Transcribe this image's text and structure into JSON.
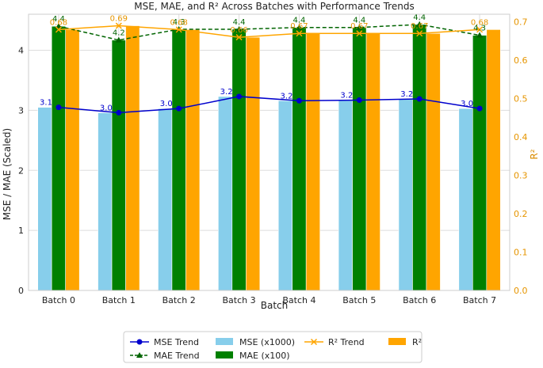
{
  "chart_data": {
    "type": "bar",
    "title": "MSE, MAE, and R² Across Batches with Performance Trends",
    "xlabel": "Batch",
    "ylabel_left": "MSE / MAE (Scaled)",
    "ylabel_right": "R²",
    "categories": [
      "Batch 0",
      "Batch 1",
      "Batch 2",
      "Batch 3",
      "Batch 4",
      "Batch 5",
      "Batch 6",
      "Batch 7"
    ],
    "ylim_left": [
      0,
      4.6
    ],
    "ylim_right": [
      0,
      0.72
    ],
    "yticks_left": [
      "0",
      "1",
      "2",
      "3",
      "4"
    ],
    "yticks_right": [
      "0.0",
      "0.1",
      "0.2",
      "0.3",
      "0.4",
      "0.5",
      "0.6",
      "0.7"
    ],
    "grid": true,
    "series": [
      {
        "name": "MSE (x1000)",
        "kind": "bar",
        "axis": "left",
        "color": "#87ceeb",
        "values": [
          3.05,
          2.96,
          3.03,
          3.23,
          3.16,
          3.17,
          3.19,
          3.03
        ]
      },
      {
        "name": "MAE (x100)",
        "kind": "bar",
        "axis": "left",
        "color": "#008000",
        "values": [
          4.4,
          4.17,
          4.35,
          4.35,
          4.38,
          4.38,
          4.43,
          4.25
        ]
      },
      {
        "name": "R²",
        "kind": "bar",
        "axis": "right",
        "color": "#ffa500",
        "values": [
          0.68,
          0.69,
          0.68,
          0.66,
          0.67,
          0.67,
          0.67,
          0.68
        ]
      },
      {
        "name": "MSE Trend",
        "kind": "line",
        "axis": "left",
        "color": "#0000cd",
        "values": [
          3.05,
          2.96,
          3.03,
          3.23,
          3.16,
          3.17,
          3.19,
          3.03
        ],
        "labels": [
          "3.1",
          "3.0",
          "3.0",
          "3.2",
          "3.2",
          "3.2",
          "3.2",
          "3.0"
        ]
      },
      {
        "name": "MAE Trend",
        "kind": "line",
        "axis": "left",
        "color": "#006400",
        "values": [
          4.4,
          4.17,
          4.35,
          4.35,
          4.38,
          4.38,
          4.43,
          4.25
        ],
        "labels": [
          "4.4",
          "4.2",
          "4.3",
          "4.4",
          "4.4",
          "4.4",
          "4.4",
          "4.3"
        ]
      },
      {
        "name": "R² Trend",
        "kind": "line",
        "axis": "right",
        "color": "#ffa500",
        "values": [
          0.68,
          0.69,
          0.68,
          0.66,
          0.67,
          0.67,
          0.67,
          0.68
        ],
        "labels": [
          "0.68",
          "0.69",
          "0.68",
          "0.66",
          "0.67",
          "0.67",
          "0.67",
          "0.68"
        ]
      }
    ],
    "legend": {
      "placement": "bottom-center",
      "entries": [
        "MSE Trend",
        "MAE Trend",
        "MSE (x1000)",
        "MAE (x100)",
        "R² Trend",
        "R²"
      ]
    }
  }
}
